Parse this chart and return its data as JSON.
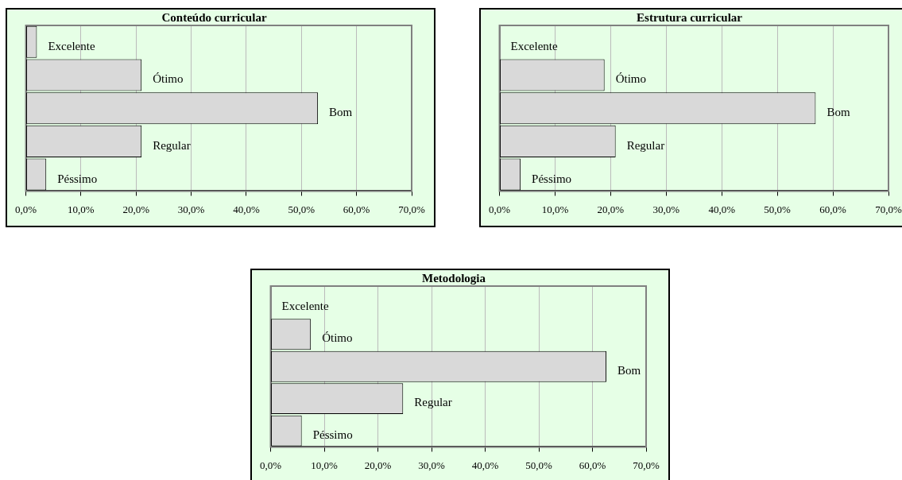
{
  "chart_data": [
    {
      "type": "bar",
      "orientation": "horizontal",
      "title": "Conteúdo curricular",
      "categories": [
        "Excelente",
        "Ótimo",
        "Bom",
        "Regular",
        "Péssimo"
      ],
      "values": [
        2,
        21,
        53,
        21,
        3.7
      ],
      "color": "#d9d9d9",
      "xlim": [
        0,
        70
      ],
      "xticks": [
        {
          "value": 0,
          "label": "0,0%"
        },
        {
          "value": 10,
          "label": "10,0%"
        },
        {
          "value": 20,
          "label": "20,0%"
        },
        {
          "value": 30,
          "label": "30,0%"
        },
        {
          "value": 40,
          "label": "40,0%"
        },
        {
          "value": 50,
          "label": "50,0%"
        },
        {
          "value": 60,
          "label": "60,0%"
        },
        {
          "value": 70,
          "label": "70,0%"
        }
      ],
      "grid": "x",
      "tick_labels": "x",
      "legend": false
    },
    {
      "type": "bar",
      "orientation": "horizontal",
      "title": "Estrutura curricular",
      "categories": [
        "Excelente",
        "Ótimo",
        "Bom",
        "Regular",
        "Péssimo"
      ],
      "values": [
        0,
        18.9,
        56.9,
        20.9,
        3.8
      ],
      "color": "#d9d9d9",
      "xlim": [
        0,
        70
      ],
      "xticks": [
        {
          "value": 0,
          "label": "0,0%"
        },
        {
          "value": 10,
          "label": "10,0%"
        },
        {
          "value": 20,
          "label": "20,0%"
        },
        {
          "value": 30,
          "label": "30,0%"
        },
        {
          "value": 40,
          "label": "40,0%"
        },
        {
          "value": 50,
          "label": "50,0%"
        },
        {
          "value": 60,
          "label": "60,0%"
        },
        {
          "value": 70,
          "label": "70,0%"
        }
      ],
      "grid": "x",
      "tick_labels": "x",
      "legend": false
    },
    {
      "type": "bar",
      "orientation": "horizontal",
      "title": "Metodologia",
      "categories": [
        "Excelente",
        "Ótimo",
        "Bom",
        "Regular",
        "Péssimo"
      ],
      "values": [
        0,
        7.5,
        62.6,
        24.7,
        5.8
      ],
      "color": "#d9d9d9",
      "xlim": [
        0,
        70
      ],
      "xticks": [
        {
          "value": 0,
          "label": "0,0%"
        },
        {
          "value": 10,
          "label": "10,0%"
        },
        {
          "value": 20,
          "label": "20,0%"
        },
        {
          "value": 30,
          "label": "30,0%"
        },
        {
          "value": 40,
          "label": "40,0%"
        },
        {
          "value": 50,
          "label": "50,0%"
        },
        {
          "value": 60,
          "label": "60,0%"
        },
        {
          "value": 70,
          "label": "70,0%"
        }
      ],
      "grid": "x",
      "tick_labels": "x",
      "legend": false
    }
  ]
}
